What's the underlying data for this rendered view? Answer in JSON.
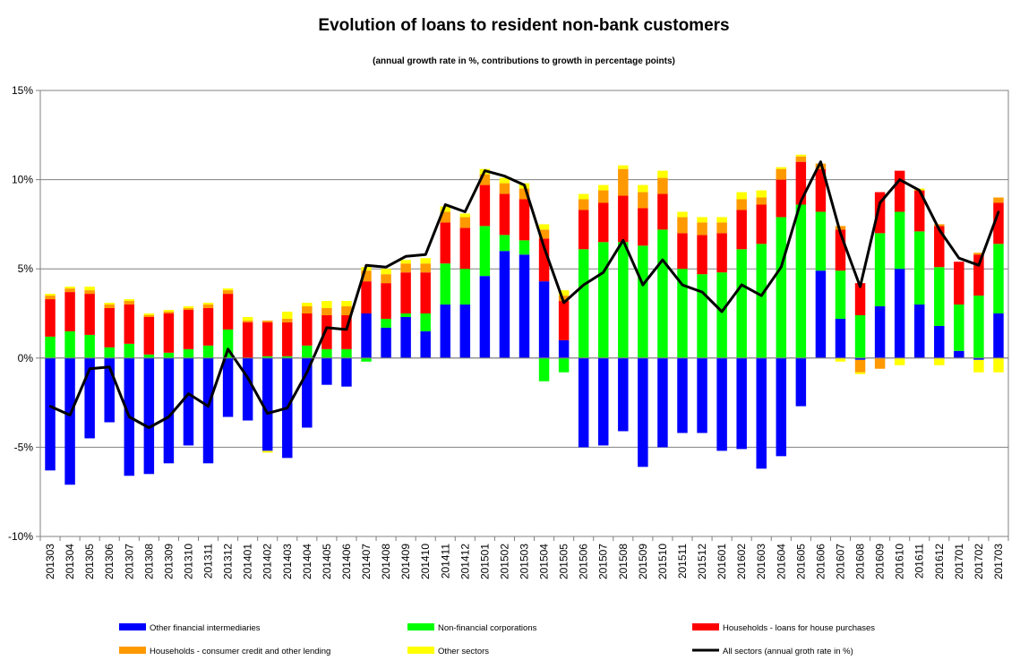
{
  "chart_data": {
    "type": "bar",
    "stacked": true,
    "title": "Evolution of loans to resident non-bank customers",
    "subtitle": "(annual growth rate in %, contributions to growth in percentage points)",
    "xlabel": "",
    "ylabel": "",
    "ylim": [
      -10,
      15
    ],
    "yticks": [
      -10,
      -5,
      0,
      5,
      10,
      15
    ],
    "ytick_labels": [
      "-10%",
      "-5%",
      "0%",
      "5%",
      "10%",
      "15%"
    ],
    "grid": true,
    "legend_position": "bottom",
    "categories": [
      "201303",
      "201304",
      "201305",
      "201306",
      "201307",
      "201308",
      "201309",
      "201310",
      "201311",
      "201312",
      "201401",
      "201402",
      "201403",
      "201404",
      "201405",
      "201406",
      "201407",
      "201408",
      "201409",
      "201410",
      "201411",
      "201412",
      "201501",
      "201502",
      "201503",
      "201504",
      "201505",
      "201506",
      "201507",
      "201508",
      "201509",
      "201510",
      "201511",
      "201512",
      "201601",
      "201602",
      "201603",
      "201604",
      "201605",
      "201606",
      "201607",
      "201608",
      "201609",
      "201610",
      "201611",
      "201612",
      "201701",
      "201702",
      "201703"
    ],
    "series": [
      {
        "name": "Other financial intermediaries",
        "kind": "bar",
        "color": "#0000ff",
        "values": [
          -6.3,
          -7.1,
          -4.5,
          -3.6,
          -6.6,
          -6.5,
          -5.9,
          -4.9,
          -5.9,
          -3.3,
          -3.5,
          -5.2,
          -5.6,
          -3.9,
          -1.5,
          -1.6,
          2.5,
          1.7,
          2.3,
          1.5,
          3.0,
          3.0,
          4.6,
          6.0,
          5.8,
          4.3,
          1.0,
          -5.0,
          -4.9,
          -4.1,
          -6.1,
          -5.0,
          -4.2,
          -4.2,
          -5.2,
          -5.1,
          -6.2,
          -5.5,
          -2.7,
          4.9,
          2.2,
          -0.1,
          2.9,
          5.0,
          3.0,
          1.8,
          0.4,
          -0.1,
          2.5
        ]
      },
      {
        "name": "Non-financial corporations",
        "kind": "bar",
        "color": "#00ff00",
        "values": [
          1.2,
          1.5,
          1.3,
          0.6,
          0.8,
          0.2,
          0.3,
          0.5,
          0.7,
          1.6,
          0.0,
          0.1,
          0.1,
          0.7,
          0.5,
          0.5,
          -0.2,
          0.5,
          0.2,
          1.0,
          2.3,
          2.0,
          2.8,
          0.9,
          0.8,
          -1.3,
          -0.8,
          6.1,
          6.5,
          6.5,
          6.3,
          7.2,
          5.0,
          4.7,
          4.8,
          6.1,
          6.4,
          7.9,
          8.6,
          3.3,
          2.7,
          2.4,
          4.1,
          3.2,
          4.1,
          3.3,
          2.6,
          3.5,
          3.9
        ]
      },
      {
        "name": "Households - loans for house purchases",
        "kind": "bar",
        "color": "#ff0000",
        "values": [
          2.1,
          2.2,
          2.3,
          2.2,
          2.2,
          2.1,
          2.2,
          2.2,
          2.1,
          2.0,
          2.0,
          1.9,
          1.9,
          1.8,
          1.9,
          1.9,
          1.8,
          2.0,
          2.3,
          2.3,
          2.3,
          2.3,
          2.3,
          2.3,
          2.3,
          2.4,
          2.2,
          2.2,
          2.2,
          2.6,
          2.1,
          2.0,
          2.0,
          2.2,
          2.2,
          2.2,
          2.2,
          2.1,
          2.4,
          2.4,
          2.3,
          1.8,
          2.3,
          2.3,
          2.3,
          2.3,
          2.4,
          2.3,
          2.3
        ]
      },
      {
        "name": "Households - consumer credit and other lending",
        "kind": "bar",
        "color": "#ff9900",
        "values": [
          0.2,
          0.2,
          0.2,
          0.2,
          0.2,
          0.1,
          0.1,
          0.1,
          0.2,
          0.2,
          0.1,
          0.1,
          0.2,
          0.4,
          0.4,
          0.5,
          0.6,
          0.5,
          0.5,
          0.5,
          0.6,
          0.6,
          0.6,
          0.6,
          0.6,
          0.5,
          0.3,
          0.6,
          0.7,
          1.5,
          0.9,
          0.9,
          0.9,
          0.7,
          0.6,
          0.6,
          0.4,
          0.6,
          0.3,
          0.3,
          0.2,
          -0.7,
          -0.6,
          0.0,
          0.0,
          0.1,
          0.0,
          0.1,
          0.3
        ]
      },
      {
        "name": "Other sectors",
        "kind": "bar",
        "color": "#ffff00",
        "values": [
          0.1,
          0.1,
          0.2,
          0.1,
          0.1,
          0.1,
          0.1,
          0.1,
          0.1,
          0.1,
          0.2,
          -0.1,
          0.4,
          0.2,
          0.4,
          0.3,
          0.2,
          0.3,
          0.2,
          0.3,
          0.3,
          0.2,
          0.3,
          0.3,
          0.3,
          0.3,
          0.3,
          0.3,
          0.3,
          0.2,
          0.4,
          0.4,
          0.3,
          0.3,
          0.3,
          0.4,
          0.4,
          0.1,
          0.1,
          0.0,
          -0.2,
          -0.1,
          0.0,
          -0.4,
          0.1,
          -0.4,
          0.0,
          -0.7,
          -0.8
        ]
      },
      {
        "name": "All sectors (annual groth rate in %)",
        "kind": "line",
        "color": "#000000",
        "values": [
          -2.7,
          -3.2,
          -0.6,
          -0.5,
          -3.3,
          -3.9,
          -3.3,
          -2.0,
          -2.7,
          0.5,
          -1.1,
          -3.1,
          -2.8,
          -0.8,
          1.7,
          1.6,
          5.2,
          5.1,
          5.7,
          5.8,
          8.6,
          8.2,
          10.5,
          10.2,
          9.7,
          6.2,
          3.1,
          4.1,
          4.8,
          6.6,
          4.1,
          5.5,
          4.1,
          3.7,
          2.6,
          4.1,
          3.5,
          5.1,
          8.8,
          11.0,
          7.0,
          4.0,
          8.7,
          10.0,
          9.4,
          7.2,
          5.6,
          5.2,
          8.2
        ]
      }
    ]
  }
}
